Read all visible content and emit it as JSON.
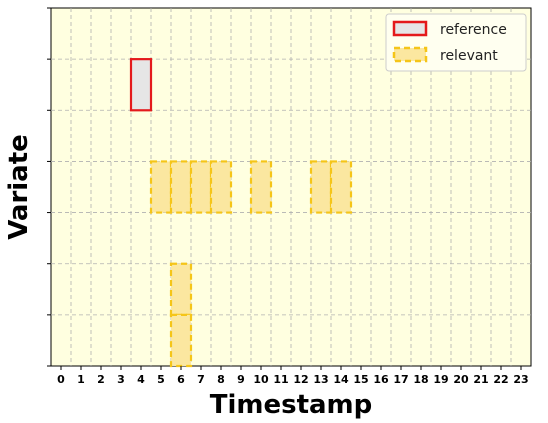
{
  "chart_data": {
    "type": "heatmap",
    "xlabel": "Timestamp",
    "ylabel": "Variate",
    "x_ticks": [
      0,
      1,
      2,
      3,
      4,
      5,
      6,
      7,
      8,
      9,
      10,
      11,
      12,
      13,
      14,
      15,
      16,
      17,
      18,
      19,
      20,
      21,
      22,
      23
    ],
    "y_rows": 7,
    "grid": true,
    "legend_position": "top-right",
    "legend": [
      {
        "label": "reference",
        "style": "solid",
        "edge": "#e41a1c",
        "fill": "#e6e6e6"
      },
      {
        "label": "relevant",
        "style": "dashed",
        "edge": "#f5c518",
        "fill": "#fbe7a0"
      }
    ],
    "reference_cells": [
      {
        "x": 4,
        "row": 5
      }
    ],
    "relevant_cells": [
      {
        "x": 5,
        "row": 3
      },
      {
        "x": 6,
        "row": 3
      },
      {
        "x": 7,
        "row": 3
      },
      {
        "x": 8,
        "row": 3
      },
      {
        "x": 10,
        "row": 3
      },
      {
        "x": 13,
        "row": 3
      },
      {
        "x": 14,
        "row": 3
      },
      {
        "x": 6,
        "row": 1
      },
      {
        "x": 6,
        "row": 0
      }
    ],
    "colors": {
      "background": "#ffffe0",
      "grid": "#b0b0b0"
    }
  }
}
